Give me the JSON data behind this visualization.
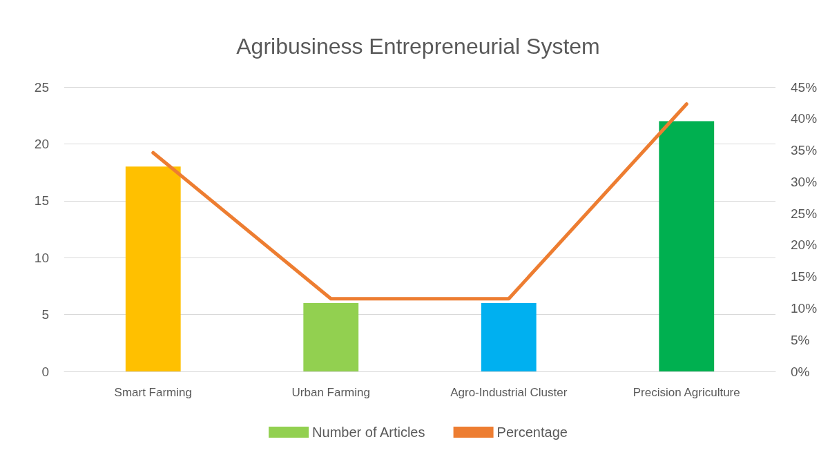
{
  "chart_data": {
    "type": "bar",
    "title": "Agribusiness Entrepreneurial System",
    "categories": [
      "Smart Farming",
      "Urban Farming",
      "Agro-Industrial Cluster",
      "Precision Agriculture"
    ],
    "series": [
      {
        "name": "Number of Articles",
        "color": "#92d050",
        "colors": [
          "#ffc000",
          "#92d050",
          "#00b0f0",
          "#00b050"
        ],
        "values": [
          18,
          6,
          6,
          22
        ]
      },
      {
        "name": "Percentage",
        "type": "line",
        "axis": "y2",
        "color": "#ed7d31",
        "marker": "none",
        "line_style": "solid",
        "values": [
          34.6,
          11.5,
          11.5,
          42.3
        ]
      }
    ],
    "ylim": [
      0,
      25
    ],
    "yticks": [
      0,
      5,
      10,
      15,
      20,
      25
    ],
    "y2lim": [
      0,
      45
    ],
    "y2ticks": [
      {
        "value": 0,
        "label": "0%"
      },
      {
        "value": 5,
        "label": "5%"
      },
      {
        "value": 10,
        "label": "10%"
      },
      {
        "value": 15,
        "label": "15%"
      },
      {
        "value": 20,
        "label": "20%"
      },
      {
        "value": 25,
        "label": "25%"
      },
      {
        "value": 30,
        "label": "30%"
      },
      {
        "value": 35,
        "label": "35%"
      },
      {
        "value": 40,
        "label": "40%"
      },
      {
        "value": 45,
        "label": "45%"
      }
    ],
    "grid": "y",
    "legend": "bottom"
  }
}
